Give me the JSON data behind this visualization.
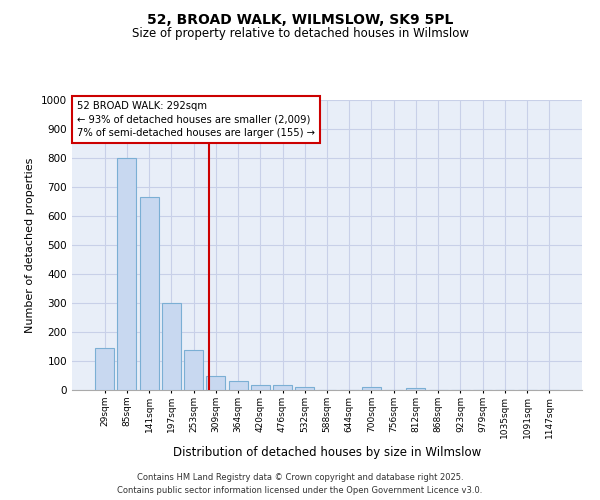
{
  "title1": "52, BROAD WALK, WILMSLOW, SK9 5PL",
  "title2": "Size of property relative to detached houses in Wilmslow",
  "xlabel": "Distribution of detached houses by size in Wilmslow",
  "ylabel": "Number of detached properties",
  "categories": [
    "29sqm",
    "85sqm",
    "141sqm",
    "197sqm",
    "253sqm",
    "309sqm",
    "364sqm",
    "420sqm",
    "476sqm",
    "532sqm",
    "588sqm",
    "644sqm",
    "700sqm",
    "756sqm",
    "812sqm",
    "868sqm",
    "923sqm",
    "979sqm",
    "1035sqm",
    "1091sqm",
    "1147sqm"
  ],
  "values": [
    145,
    800,
    665,
    300,
    138,
    50,
    30,
    18,
    18,
    10,
    0,
    0,
    10,
    0,
    8,
    0,
    0,
    0,
    0,
    0,
    0
  ],
  "bar_color": "#c8d8f0",
  "bar_edge_color": "#7bafd4",
  "annotation_line1": "52 BROAD WALK: 292sqm",
  "annotation_line2": "← 93% of detached houses are smaller (2,009)",
  "annotation_line3": "7% of semi-detached houses are larger (155) →",
  "annotation_box_color": "#ffffff",
  "annotation_box_edge": "#cc0000",
  "vline_color": "#cc0000",
  "grid_color": "#c8d0e8",
  "ylim": [
    0,
    1000
  ],
  "yticks": [
    0,
    100,
    200,
    300,
    400,
    500,
    600,
    700,
    800,
    900,
    1000
  ],
  "footer_line1": "Contains HM Land Registry data © Crown copyright and database right 2025.",
  "footer_line2": "Contains public sector information licensed under the Open Government Licence v3.0.",
  "bg_color": "#ffffff",
  "plot_bg_color": "#e8eef8"
}
